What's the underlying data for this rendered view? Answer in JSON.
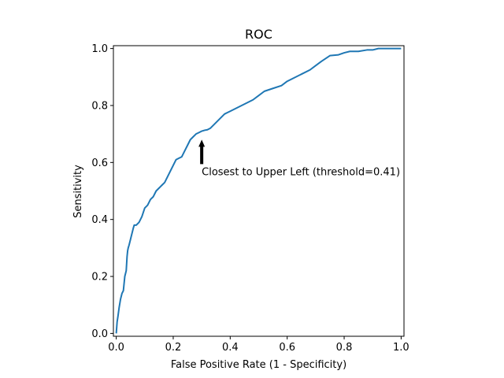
{
  "chart_data": {
    "type": "line",
    "title": "ROC",
    "xlabel": "False Positive Rate (1 - Specificity)",
    "ylabel": "Sensitivity",
    "xlim": [
      -0.01,
      1.01
    ],
    "ylim": [
      -0.01,
      1.01
    ],
    "xticks": [
      0.0,
      0.2,
      0.4,
      0.6,
      0.8,
      1.0
    ],
    "yticks": [
      0.0,
      0.2,
      0.4,
      0.6,
      0.8,
      1.0
    ],
    "grid": false,
    "line_color": "#1f77b4",
    "series": [
      {
        "x": [
          0.0,
          0.003,
          0.006,
          0.01,
          0.015,
          0.02,
          0.025,
          0.03,
          0.035,
          0.038,
          0.04,
          0.042,
          0.045,
          0.05,
          0.055,
          0.06,
          0.063,
          0.066,
          0.07,
          0.08,
          0.09,
          0.1,
          0.11,
          0.12,
          0.13,
          0.14,
          0.15,
          0.155,
          0.16,
          0.17,
          0.18,
          0.19,
          0.2,
          0.21,
          0.22,
          0.23,
          0.24,
          0.25,
          0.26,
          0.27,
          0.28,
          0.29,
          0.3,
          0.31,
          0.32,
          0.33,
          0.34,
          0.35,
          0.36,
          0.37,
          0.38,
          0.39,
          0.4,
          0.42,
          0.44,
          0.46,
          0.48,
          0.5,
          0.52,
          0.55,
          0.58,
          0.6,
          0.62,
          0.65,
          0.68,
          0.7,
          0.72,
          0.75,
          0.78,
          0.8,
          0.82,
          0.85,
          0.88,
          0.9,
          0.92,
          0.94,
          0.96,
          0.98,
          1.0
        ],
        "y": [
          0.0,
          0.04,
          0.06,
          0.09,
          0.12,
          0.14,
          0.15,
          0.2,
          0.22,
          0.27,
          0.29,
          0.3,
          0.31,
          0.33,
          0.35,
          0.37,
          0.38,
          0.38,
          0.38,
          0.39,
          0.41,
          0.44,
          0.45,
          0.47,
          0.48,
          0.5,
          0.51,
          0.515,
          0.52,
          0.53,
          0.55,
          0.57,
          0.59,
          0.61,
          0.615,
          0.62,
          0.64,
          0.66,
          0.68,
          0.69,
          0.7,
          0.705,
          0.71,
          0.713,
          0.715,
          0.72,
          0.73,
          0.74,
          0.75,
          0.76,
          0.77,
          0.775,
          0.78,
          0.79,
          0.8,
          0.81,
          0.82,
          0.835,
          0.85,
          0.86,
          0.87,
          0.885,
          0.895,
          0.91,
          0.925,
          0.94,
          0.955,
          0.975,
          0.978,
          0.985,
          0.99,
          0.99,
          0.995,
          0.995,
          1.0,
          1.0,
          1.0,
          1.0,
          1.0
        ]
      }
    ],
    "annotations": [
      {
        "text": "Closest to Upper Left (threshold=0.41)",
        "x": 0.3,
        "y": 0.68,
        "arrow": true
      }
    ]
  }
}
